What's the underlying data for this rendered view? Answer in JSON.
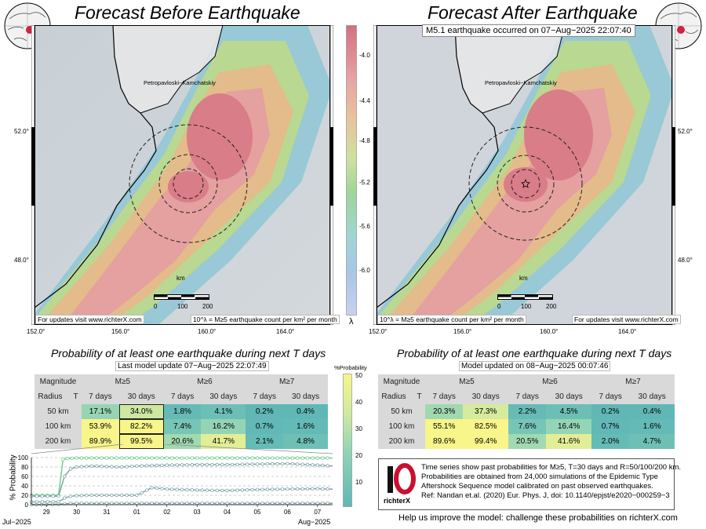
{
  "left": {
    "title": "Forecast Before Earthquake",
    "lat_ticks": [
      "52.0°",
      "48.0°"
    ],
    "lon_ticks": [
      "152.0°",
      "156.0°",
      "160.0°",
      "164.0°"
    ],
    "place": "Petropavloski−Kamchatskiy",
    "scale_unit": "km",
    "scale_labels": [
      "0",
      "100",
      "200"
    ],
    "note_updates": "For updates visit www.richterX.com",
    "note_legend": "10^λ = M≥5 earthquake count per km² per month"
  },
  "right": {
    "title": "Forecast After Earthquake",
    "event": "M5.1 earthquake occurred on 07−Aug−2025 22:07:40",
    "lat_ticks": [
      "52.0°",
      "48.0°"
    ],
    "lon_ticks": [
      "152.0°",
      "156.0°",
      "160.0°",
      "164.0°"
    ],
    "place": "Petropavloski−Kamchatskiy",
    "scale_unit": "km",
    "scale_labels": [
      "0",
      "100",
      "200"
    ],
    "note_updates": "For updates visit www.richterX.com",
    "note_legend": "10^λ = M≥5 earthquake count per km² per month"
  },
  "colorbar": {
    "ticks": [
      "-4.0",
      "-4.4",
      "-4.8",
      "-5.2",
      "-5.6",
      "-6.0"
    ],
    "label": "λ"
  },
  "prob_left": {
    "title": "Probability of at least one earthquake during next T days",
    "subtitle": "Last model update 07−Aug−2025 22:07:49",
    "h_magnitude": "Magnitude",
    "h_radius": "Radius",
    "h_T": "T",
    "mags": [
      "M≥5",
      "M≥6",
      "M≥7"
    ],
    "periods": [
      "7 days",
      "30 days",
      "7 days",
      "30 days",
      "7 days",
      "30 days"
    ],
    "rows": [
      {
        "radius": "50 km",
        "values": [
          "17.1%",
          "34.0%",
          "1.8%",
          "4.1%",
          "0.2%",
          "0.4%"
        ],
        "pct": [
          17.1,
          34.0,
          1.8,
          4.1,
          0.2,
          0.4
        ]
      },
      {
        "radius": "100 km",
        "values": [
          "53.9%",
          "82.2%",
          "7.4%",
          "16.2%",
          "0.7%",
          "1.6%"
        ],
        "pct": [
          53.9,
          82.2,
          7.4,
          16.2,
          0.7,
          1.6
        ]
      },
      {
        "radius": "200 km",
        "values": [
          "89.9%",
          "99.5%",
          "20.6%",
          "41.7%",
          "2.1%",
          "4.8%"
        ],
        "pct": [
          89.9,
          99.5,
          20.6,
          41.7,
          2.1,
          4.8
        ]
      }
    ]
  },
  "prob_right": {
    "title": "Probability of at least one earthquake during next T days",
    "subtitle": "Model updated on 08−Aug−2025 00:07:46",
    "h_magnitude": "Magnitude",
    "h_radius": "Radius",
    "h_T": "T",
    "mags": [
      "M≥5",
      "M≥6",
      "M≥7"
    ],
    "periods": [
      "7 days",
      "30 days",
      "7 days",
      "30 days",
      "7 days",
      "30 days"
    ],
    "rows": [
      {
        "radius": "50 km",
        "values": [
          "20.3%",
          "37.3%",
          "2.2%",
          "4.5%",
          "0.2%",
          "0.4%"
        ],
        "pct": [
          20.3,
          37.3,
          2.2,
          4.5,
          0.2,
          0.4
        ]
      },
      {
        "radius": "100 km",
        "values": [
          "55.1%",
          "82.5%",
          "7.6%",
          "16.4%",
          "0.7%",
          "1.6%"
        ],
        "pct": [
          55.1,
          82.5,
          7.6,
          16.4,
          0.7,
          1.6
        ]
      },
      {
        "radius": "200 km",
        "values": [
          "89.6%",
          "99.4%",
          "20.5%",
          "41.6%",
          "2.0%",
          "4.7%"
        ],
        "pct": [
          89.6,
          99.4,
          20.5,
          41.6,
          2.0,
          4.7
        ]
      }
    ]
  },
  "pbar": {
    "label": "%Probability",
    "ticks": [
      "50",
      "40",
      "30",
      "20",
      "10"
    ]
  },
  "chart_data": {
    "type": "line",
    "ylabel": "% Probability",
    "ylim": [
      0,
      100
    ],
    "yticks": [
      0,
      20,
      40,
      60,
      80,
      100
    ],
    "x_ticks": [
      "29",
      "30",
      "31",
      "01",
      "02",
      "03",
      "04",
      "05",
      "06",
      "07"
    ],
    "x_start_label": "Jul−2025",
    "x_end_label": "Aug−2025",
    "x_range_days": [
      28.5,
      38.5
    ],
    "series": [
      {
        "color": "#6ecf8f",
        "x": [
          28.5,
          29.4,
          29.55,
          29.7,
          30.0,
          30.5,
          31.0,
          32.0,
          33.0,
          34.0,
          35.0,
          36.0,
          37.0,
          38.0,
          38.5
        ],
        "y": [
          20,
          20,
          96,
          98,
          99,
          99,
          99,
          99,
          99,
          99,
          99,
          99,
          99,
          99,
          99
        ]
      },
      {
        "color": "#7fa6a8",
        "x": [
          28.5,
          29.4,
          29.6,
          29.8,
          30.0,
          30.5,
          31.0,
          31.5,
          32.0,
          33.0,
          34.0,
          35.0,
          36.0,
          37.0,
          38.0,
          38.5
        ],
        "y": [
          18,
          18,
          60,
          76,
          80,
          82,
          81,
          80,
          82,
          84,
          85,
          85,
          86,
          87,
          84,
          82
        ]
      },
      {
        "color": "#7fa6a8",
        "x": [
          28.5,
          29.4,
          29.6,
          29.8,
          30.0,
          30.5,
          31.0,
          31.5,
          32.0,
          32.5,
          33.0,
          34.0,
          35.0,
          36.0,
          37.0,
          38.0,
          38.5
        ],
        "y": [
          6,
          6,
          14,
          18,
          19,
          20,
          20,
          20,
          20,
          36,
          33,
          31,
          30,
          32,
          33,
          34,
          33
        ]
      },
      {
        "color": "#7fa6a8",
        "x": [
          28.5,
          29.0,
          29.4,
          29.6,
          30.0,
          31.0,
          32.0,
          33.0,
          34.0,
          35.0,
          36.0,
          37.0,
          38.0,
          38.5
        ],
        "y": [
          0,
          0,
          1,
          2,
          3,
          3,
          3,
          3,
          3,
          3,
          3,
          3,
          3,
          3
        ]
      }
    ]
  },
  "info": {
    "logo_text": "richterX",
    "lines": [
      "Time series show past probabilities for M≥5, T=30 days and R=50/100/200 km.",
      "Probabilities are obtained from 24,000 simulations of the Epidemic Type",
      "Aftershock Sequence model calibrated on past observed earthquakes.",
      "Ref: Nandan et.al. (2020) Eur. Phys. J, doi: 10.1140/epjst/e2020−000259−3"
    ]
  },
  "footer": "Help us improve the model: challenge these probabilities on richterX.com"
}
